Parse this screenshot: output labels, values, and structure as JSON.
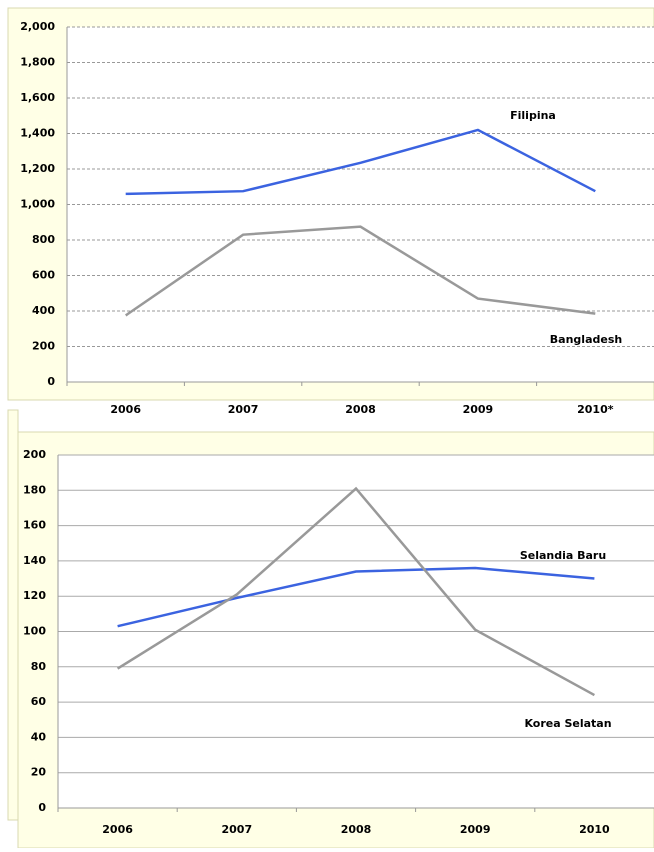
{
  "chart_data": [
    {
      "type": "line",
      "categories": [
        "2006",
        "2007",
        "2008",
        "2009",
        "2010*"
      ],
      "series": [
        {
          "name": "Filipina",
          "color": "#3b63e0",
          "values": [
            1060,
            1075,
            1235,
            1420,
            1075
          ]
        },
        {
          "name": "Bangladesh",
          "color": "#999999",
          "values": [
            375,
            830,
            875,
            470,
            385
          ]
        }
      ],
      "ylim": [
        0,
        2000
      ],
      "yticks": [
        0,
        200,
        400,
        600,
        800,
        {
          "value": 1000,
          "label": "1,000"
        },
        {
          "value": 1200,
          "label": "1,200"
        },
        {
          "value": 1400,
          "label": "1,400"
        },
        {
          "value": 1600,
          "label": "1,600"
        },
        {
          "value": 1800,
          "label": "1,800"
        },
        {
          "value": 2000,
          "label": "2,000"
        }
      ],
      "grid": "dashed"
    },
    {
      "type": "line",
      "categories": [
        "2006",
        "2007",
        "2008",
        "2009",
        "2010"
      ],
      "series": [
        {
          "name": "Selandia Baru",
          "color": "#3b63e0",
          "values": [
            103,
            119,
            134,
            136,
            130
          ]
        },
        {
          "name": "Korea Selatan",
          "color": "#999999",
          "values": [
            79,
            121,
            181,
            101,
            64
          ]
        }
      ],
      "ylim": [
        0,
        200
      ],
      "yticks": [
        0,
        20,
        40,
        60,
        80,
        100,
        120,
        140,
        160,
        180,
        200
      ],
      "grid": "solid"
    }
  ]
}
